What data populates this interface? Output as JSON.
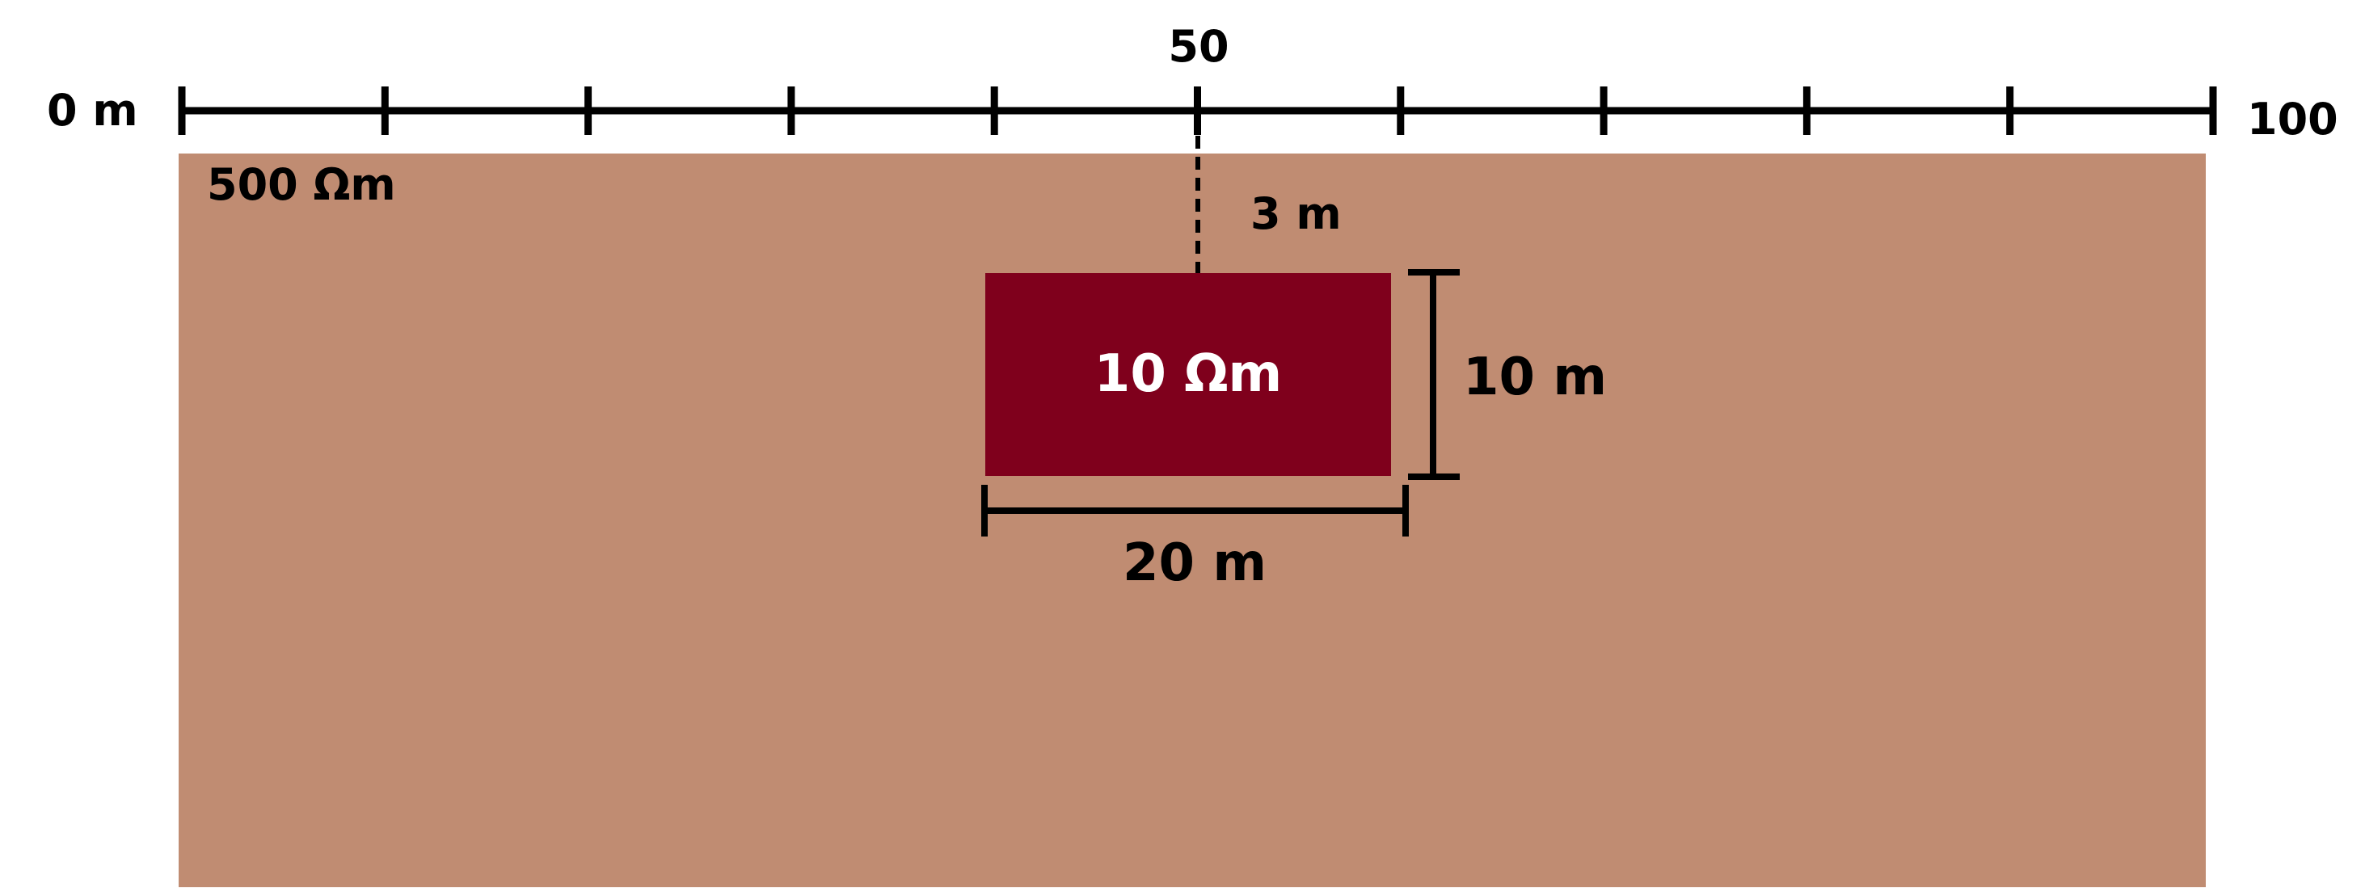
{
  "scale": {
    "start_label": "0 m",
    "mid_label": "50",
    "end_label": "100",
    "range_m": [
      0,
      100
    ],
    "tick_step_m": 10
  },
  "background": {
    "resistivity_label": "500 Ωm",
    "color": "#c08c72"
  },
  "anomaly": {
    "resistivity_label": "10 Ωm",
    "color": "#7f001c",
    "depth_label": "3 m",
    "height_label": "10 m",
    "width_label": "20 m"
  }
}
